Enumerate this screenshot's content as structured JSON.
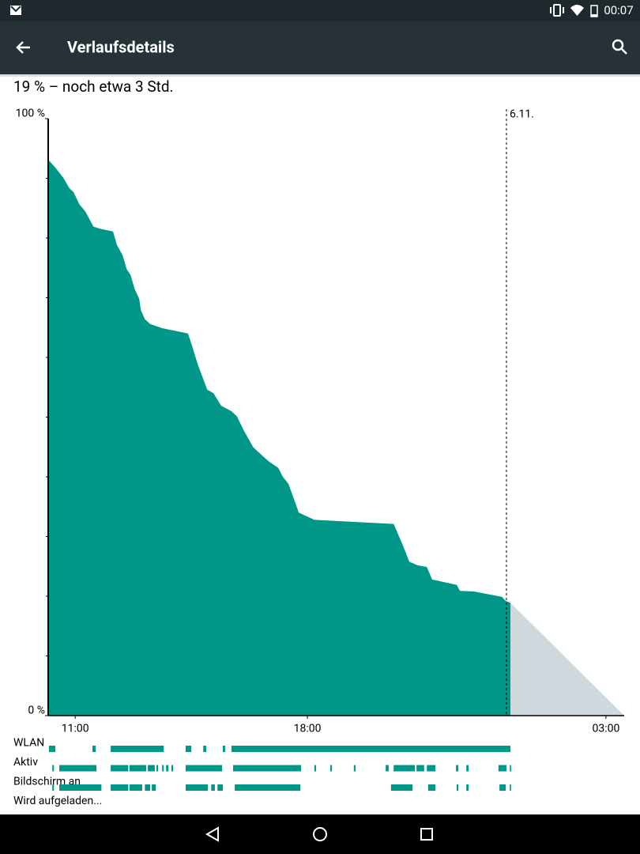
{
  "status_bar": {
    "time": "00:07"
  },
  "app_bar": {
    "title": "Verlaufsdetails"
  },
  "summary": "19 % – noch etwa 3 Std.",
  "chart_data": {
    "type": "area",
    "color": "#009688",
    "x": [
      10.21,
      10.4,
      10.64,
      10.83,
      10.95,
      11.12,
      11.31,
      11.55,
      11.79,
      12.14,
      12.26,
      12.43,
      12.55,
      12.67,
      12.79,
      12.93,
      12.98,
      13.1,
      13.26,
      13.62,
      14.4,
      14.52,
      14.69,
      14.98,
      15.17,
      15.4,
      15.71,
      15.88,
      16.07,
      16.36,
      16.55,
      16.83,
      17.12,
      17.26,
      17.43,
      17.6,
      17.74,
      18.21,
      20.6,
      20.88,
      21.07,
      21.31,
      21.6,
      21.76,
      22.5,
      22.6,
      23.02,
      23.86,
      23.98,
      24.12
    ],
    "values": [
      93.0,
      91.8,
      90.1,
      88.3,
      87.7,
      85.7,
      84.4,
      81.9,
      81.5,
      81.1,
      78.8,
      77.1,
      74.8,
      73.8,
      71.5,
      69.8,
      67.9,
      66.4,
      65.6,
      64.9,
      64.0,
      62.0,
      58.9,
      54.6,
      54.0,
      51.9,
      51.0,
      50.1,
      47.9,
      45.0,
      44.0,
      42.6,
      41.5,
      40.0,
      38.8,
      36.2,
      34.0,
      32.8,
      32.1,
      28.5,
      25.8,
      25.2,
      24.9,
      22.8,
      21.9,
      20.9,
      20.8,
      19.9,
      19.2,
      18.9
    ],
    "prediction": {
      "color": "#cfd8dc",
      "x": [
        24.12,
        27.55
      ],
      "values": [
        18.9,
        0
      ]
    },
    "xlim": [
      10.21,
      27.55
    ],
    "ylim": [
      0,
      100
    ],
    "xticks": [
      {
        "value": 11,
        "label": "11:00"
      },
      {
        "value": 18,
        "label": "18:00"
      },
      {
        "value": 27,
        "label": "03:00"
      }
    ],
    "yticks": [
      {
        "value": 0,
        "label": "0 %"
      },
      {
        "value": 100,
        "label": "100 %"
      }
    ],
    "yminorticks": [
      10,
      20,
      30,
      40,
      50,
      60,
      70,
      80,
      90
    ],
    "annotations": [
      {
        "x": 24,
        "label": "6.11."
      }
    ],
    "tracks": [
      {
        "name": "WLAN",
        "intervals": [
          [
            10.21,
            10.4
          ],
          [
            11.52,
            11.62
          ],
          [
            12.07,
            13.67
          ],
          [
            14.33,
            14.5
          ],
          [
            14.86,
            14.95
          ],
          [
            15.45,
            15.52
          ],
          [
            15.71,
            24.12
          ]
        ]
      },
      {
        "name": "Aktiv",
        "intervals": [
          [
            10.31,
            10.36
          ],
          [
            10.52,
            11.64
          ],
          [
            12.07,
            12.6
          ],
          [
            12.64,
            13.14
          ],
          [
            13.19,
            13.4
          ],
          [
            13.45,
            13.5
          ],
          [
            13.62,
            13.67
          ],
          [
            13.74,
            13.81
          ],
          [
            13.9,
            13.95
          ],
          [
            14.33,
            15.43
          ],
          [
            15.76,
            17.81
          ],
          [
            18.21,
            18.26
          ],
          [
            18.69,
            18.74
          ],
          [
            19.4,
            19.45
          ],
          [
            20.36,
            20.45
          ],
          [
            20.6,
            21.24
          ],
          [
            21.29,
            21.52
          ],
          [
            21.6,
            21.86
          ],
          [
            22.48,
            22.55
          ],
          [
            22.79,
            22.86
          ],
          [
            23.76,
            24.0
          ],
          [
            24.1,
            24.14
          ]
        ]
      },
      {
        "name": "Bildschirm an",
        "intervals": [
          [
            10.31,
            10.36
          ],
          [
            10.52,
            11.79
          ],
          [
            12.07,
            12.6
          ],
          [
            12.64,
            13.02
          ],
          [
            13.1,
            13.26
          ],
          [
            13.31,
            13.43
          ],
          [
            14.33,
            15.0
          ],
          [
            15.1,
            15.21
          ],
          [
            15.29,
            15.45
          ],
          [
            15.81,
            17.79
          ],
          [
            20.52,
            21.17
          ],
          [
            21.64,
            21.86
          ],
          [
            22.5,
            22.55
          ],
          [
            22.79,
            22.86
          ],
          [
            23.79,
            23.98
          ],
          [
            24.1,
            24.14
          ]
        ]
      },
      {
        "name": "Wird aufgeladen...",
        "intervals": []
      }
    ]
  }
}
